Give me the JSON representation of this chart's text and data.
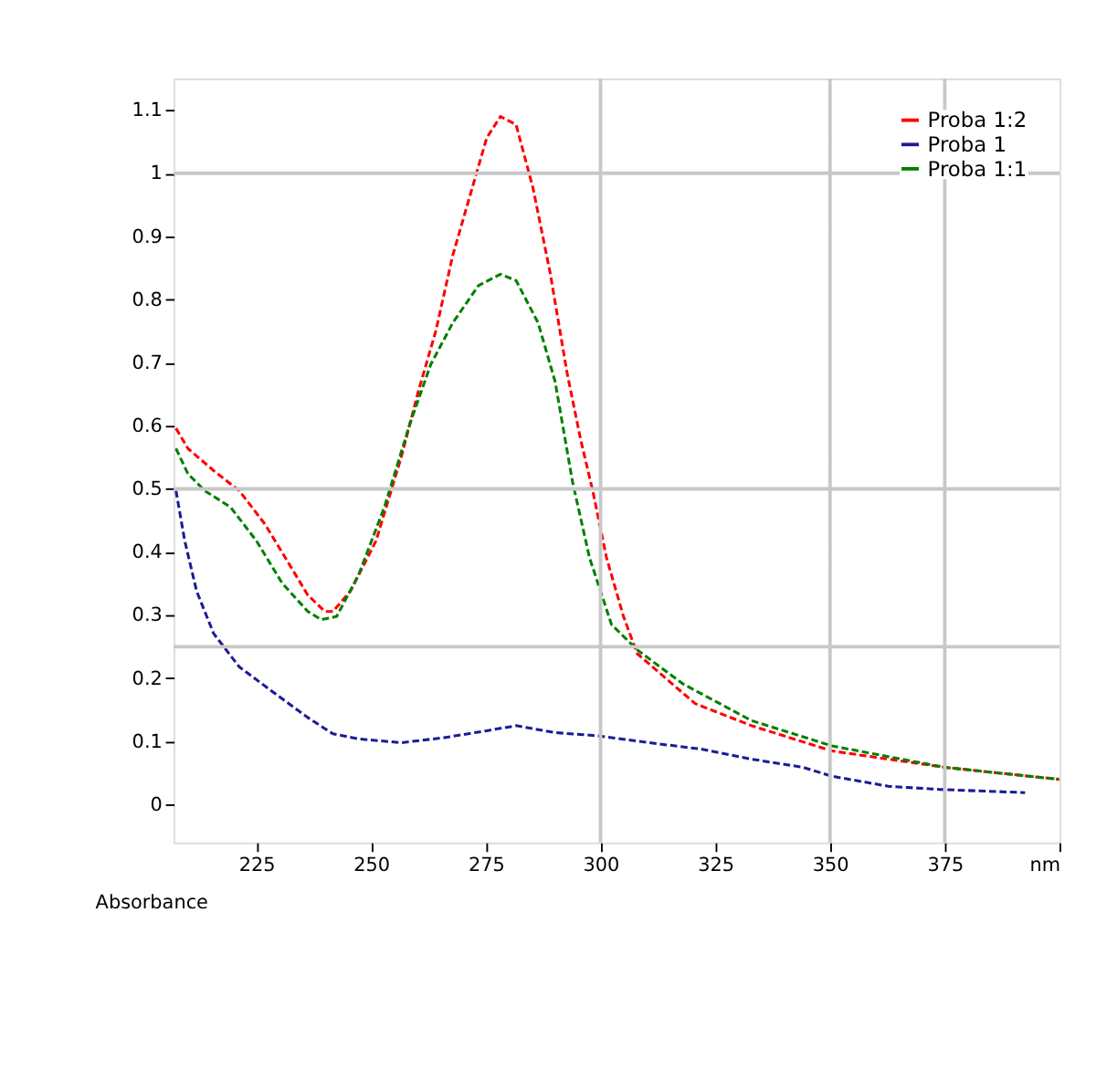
{
  "chart_data": {
    "type": "line",
    "xlim": [
      207,
      400
    ],
    "ylim": [
      -0.06,
      1.15
    ],
    "xticks": [
      225,
      250,
      275,
      300,
      325,
      350,
      375,
      {
        "value": 400,
        "label": "nm"
      }
    ],
    "yticks": [
      0,
      0.1,
      0.2,
      0.3,
      0.4,
      0.5,
      0.6,
      0.7,
      0.8,
      0.9,
      1,
      1.1
    ],
    "ref_lines": [
      {
        "axis": "x",
        "value": 300,
        "color": "#c8c8c8"
      },
      {
        "axis": "x",
        "value": 350,
        "color": "#c8c8c8"
      },
      {
        "axis": "x",
        "value": 375,
        "color": "#c8c8c8"
      },
      {
        "axis": "y",
        "value": 0.25,
        "color": "#c8c8c8"
      },
      {
        "axis": "y",
        "value": 0.5,
        "color": "#c8c8c8"
      },
      {
        "axis": "y",
        "value": 1,
        "color": "#c8c8c8"
      }
    ],
    "annotations": [
      "Absorbance"
    ],
    "legend": "top right",
    "line_style": "dashed",
    "series": [
      {
        "name": "Proba 1:2",
        "color": "#ff0000",
        "x": [
          207.5,
          210.1,
          215.7,
          221.3,
          226.9,
          232.4,
          236.2,
          239.9,
          241.7,
          245.5,
          251.1,
          256.6,
          260.4,
          264.1,
          267.8,
          271.5,
          275.2,
          278.2,
          281.6,
          285.3,
          289.0,
          292.7,
          295.7,
          298.3,
          301.3,
          305.0,
          308.0,
          320.6,
          332.9,
          350.4,
          375.0,
          399.9
        ],
        "values": [
          0.596,
          0.564,
          0.529,
          0.497,
          0.444,
          0.378,
          0.332,
          0.306,
          0.306,
          0.338,
          0.418,
          0.551,
          0.657,
          0.75,
          0.87,
          0.963,
          1.056,
          1.09,
          1.077,
          0.976,
          0.843,
          0.684,
          0.577,
          0.497,
          0.391,
          0.298,
          0.239,
          0.16,
          0.125,
          0.085,
          0.059,
          0.04
        ]
      },
      {
        "name": "Proba 1",
        "color": "#1c1c96",
        "x": [
          207.5,
          209.4,
          212.0,
          215.7,
          221.3,
          228.7,
          236.2,
          241.7,
          247.3,
          256.6,
          265.9,
          275.2,
          281.6,
          290.1,
          299.4,
          310.6,
          321.8,
          332.9,
          344.1,
          350.4,
          362.7,
          373.9,
          392.5
        ],
        "values": [
          0.497,
          0.418,
          0.338,
          0.271,
          0.218,
          0.178,
          0.138,
          0.112,
          0.104,
          0.098,
          0.106,
          0.117,
          0.125,
          0.114,
          0.109,
          0.098,
          0.088,
          0.072,
          0.059,
          0.045,
          0.029,
          0.024,
          0.019
        ]
      },
      {
        "name": "Proba 1:1",
        "color": "#008000",
        "x": [
          207.5,
          210.1,
          213.8,
          219.4,
          225.0,
          230.6,
          236.2,
          239.1,
          242.5,
          247.3,
          252.9,
          258.5,
          263.0,
          267.8,
          273.4,
          278.2,
          281.6,
          286.4,
          290.1,
          293.9,
          297.6,
          302.4,
          308.0,
          318.0,
          332.9,
          350.4,
          375.0,
          399.9
        ],
        "values": [
          0.564,
          0.524,
          0.497,
          0.471,
          0.418,
          0.351,
          0.306,
          0.293,
          0.298,
          0.364,
          0.471,
          0.604,
          0.697,
          0.763,
          0.822,
          0.84,
          0.83,
          0.763,
          0.67,
          0.511,
          0.391,
          0.285,
          0.245,
          0.191,
          0.133,
          0.093,
          0.059,
          0.04
        ]
      }
    ]
  }
}
